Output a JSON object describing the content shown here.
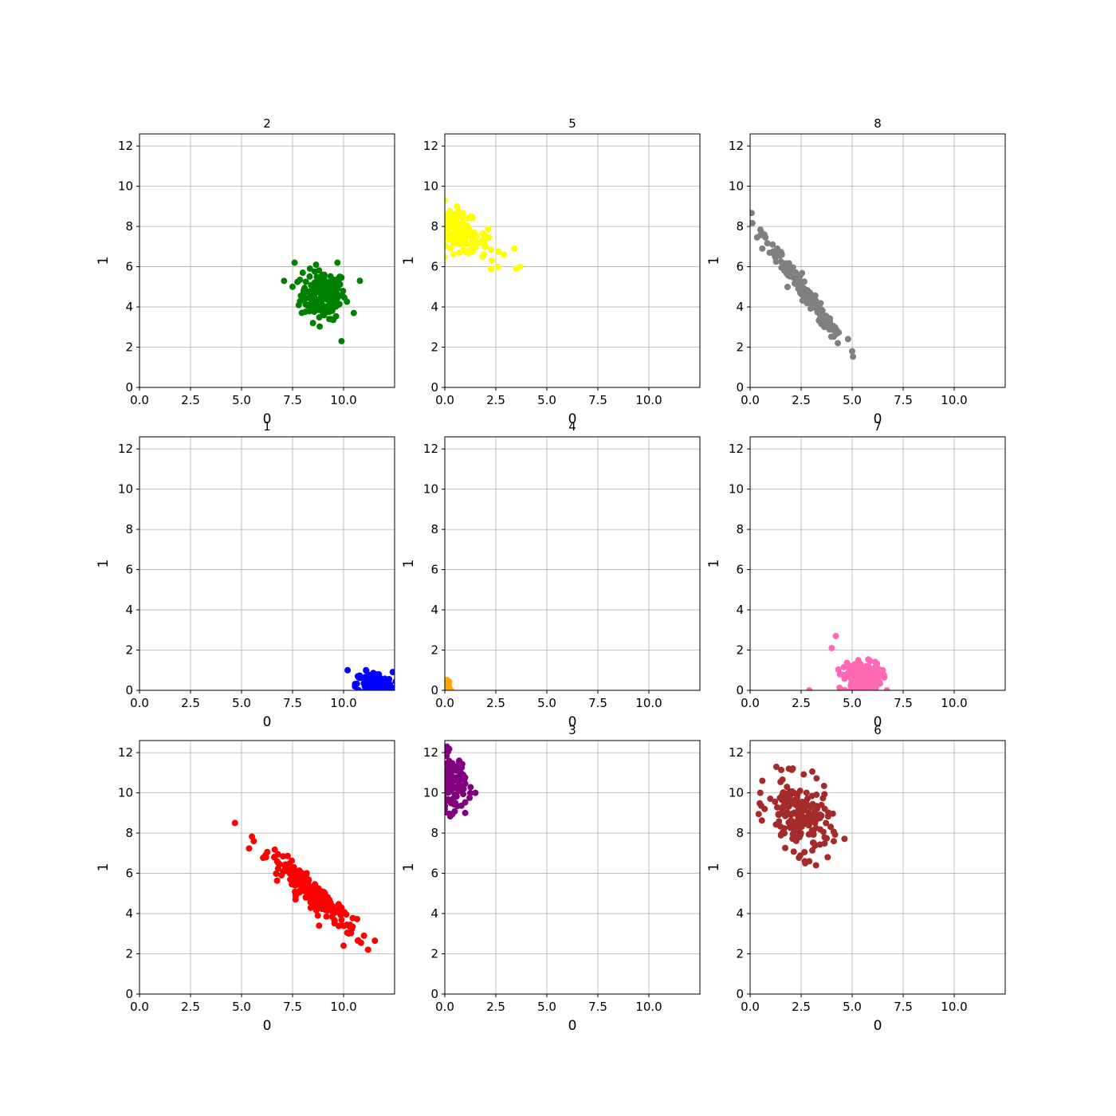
{
  "chart_data": [
    {
      "type": "scatter",
      "title": "2",
      "xlabel": "0",
      "ylabel": "1",
      "xlim": [
        0,
        12.5
      ],
      "ylim": [
        0,
        12.6
      ],
      "xticks": [
        "0.0",
        "2.5",
        "5.0",
        "7.5",
        "10.0"
      ],
      "yticks": [
        "0",
        "2",
        "4",
        "6",
        "8",
        "10",
        "12"
      ],
      "grid": true,
      "color": "#008000",
      "cluster": {
        "points": [
          [
            9.0,
            4.6
          ],
          [
            7.6,
            6.2
          ],
          [
            10.8,
            5.3
          ],
          [
            9.9,
            2.3
          ],
          [
            7.5,
            5.0
          ],
          [
            9.7,
            6.2
          ],
          [
            8.5,
            3.2
          ],
          [
            10.5,
            3.7
          ],
          [
            8.0,
            5.7
          ],
          [
            9.3,
            3.4
          ]
        ],
        "spread": [
          [
            0.55,
            0
          ],
          [
            0,
            0.6
          ]
        ],
        "n": 180
      }
    },
    {
      "type": "scatter",
      "title": "5",
      "xlabel": "0",
      "ylabel": "1",
      "xlim": [
        0,
        12.5
      ],
      "ylim": [
        0,
        12.6
      ],
      "xticks": [
        "0.0",
        "2.5",
        "5.0",
        "7.5",
        "10.0"
      ],
      "yticks": [
        "0",
        "2",
        "4",
        "6",
        "8",
        "10",
        "12"
      ],
      "grid": true,
      "color": "#ffff00",
      "cluster": {
        "points": [
          [
            0.7,
            7.7
          ],
          [
            0.0,
            9.3
          ],
          [
            3.7,
            6.0
          ],
          [
            3.5,
            5.9
          ],
          [
            3.4,
            6.9
          ],
          [
            2.9,
            6.6
          ],
          [
            2.3,
            6.3
          ],
          [
            0.1,
            8.6
          ],
          [
            0.6,
            9.0
          ],
          [
            1.5,
            7.0
          ]
        ],
        "spread": [
          [
            0.7,
            -0.3
          ],
          [
            0,
            0.45
          ]
        ],
        "n": 150
      }
    },
    {
      "type": "scatter",
      "title": "8",
      "xlabel": "0",
      "ylabel": "1",
      "xlim": [
        0,
        12.5
      ],
      "ylim": [
        0,
        12.6
      ],
      "xticks": [
        "0.0",
        "2.5",
        "5.0",
        "7.5",
        "10.0"
      ],
      "yticks": [
        "0",
        "2",
        "4",
        "6",
        "8",
        "10",
        "12"
      ],
      "grid": true,
      "color": "#808080",
      "cluster": {
        "points": [
          [
            2.7,
            4.7
          ],
          [
            0.7,
            7.6
          ],
          [
            5.0,
            1.8
          ],
          [
            4.8,
            2.4
          ],
          [
            4.3,
            2.2
          ],
          [
            1.1,
            7.1
          ],
          [
            0.6,
            6.9
          ],
          [
            3.9,
            3.0
          ]
        ],
        "spread": [
          [
            0.95,
            -1.35
          ],
          [
            0.08,
            0.12
          ]
        ],
        "n": 200
      }
    },
    {
      "type": "scatter",
      "title": "1",
      "xlabel": "0",
      "ylabel": "1",
      "xlim": [
        0,
        12.5
      ],
      "ylim": [
        0,
        12.6
      ],
      "xticks": [
        "0.0",
        "2.5",
        "5.0",
        "7.5",
        "10.0"
      ],
      "yticks": [
        "0",
        "2",
        "4",
        "6",
        "8",
        "10",
        "12"
      ],
      "grid": true,
      "color": "#0000ff",
      "cluster": {
        "points": [
          [
            11.5,
            0.3
          ],
          [
            10.2,
            1.0
          ],
          [
            11.1,
            1.0
          ],
          [
            10.7,
            0.7
          ],
          [
            12.4,
            0.1
          ],
          [
            11.8,
            0.5
          ],
          [
            12.0,
            0.0
          ]
        ],
        "spread": [
          [
            0.45,
            0
          ],
          [
            0,
            0.3
          ]
        ],
        "n": 150
      }
    },
    {
      "type": "scatter",
      "title": "4",
      "xlabel": "0",
      "ylabel": "1",
      "xlim": [
        0,
        12.5
      ],
      "ylim": [
        0,
        12.6
      ],
      "xticks": [
        "0.0",
        "2.5",
        "5.0",
        "7.5",
        "10.0"
      ],
      "yticks": [
        "0",
        "2",
        "4",
        "6",
        "8",
        "10",
        "12"
      ],
      "grid": true,
      "color": "#ffa500",
      "cluster": {
        "points": [
          [
            0.05,
            0.3
          ],
          [
            0.0,
            0.5
          ],
          [
            0.15,
            0.2
          ],
          [
            0.3,
            0.0
          ],
          [
            0.1,
            0.05
          ]
        ],
        "spread": [
          [
            0.1,
            0
          ],
          [
            0,
            0.12
          ]
        ],
        "n": 20
      }
    },
    {
      "type": "scatter",
      "title": "7",
      "xlabel": "0",
      "ylabel": "1",
      "xlim": [
        0,
        12.5
      ],
      "ylim": [
        0,
        12.6
      ],
      "xticks": [
        "0.0",
        "2.5",
        "5.0",
        "7.5",
        "10.0"
      ],
      "yticks": [
        "0",
        "2",
        "4",
        "6",
        "8",
        "10",
        "12"
      ],
      "grid": true,
      "color": "#ff69b4",
      "cluster": {
        "points": [
          [
            5.5,
            0.6
          ],
          [
            4.2,
            2.7
          ],
          [
            4.0,
            2.1
          ],
          [
            2.9,
            0.0
          ],
          [
            4.4,
            0.8
          ],
          [
            6.7,
            0.0
          ],
          [
            5.3,
            1.5
          ]
        ],
        "spread": [
          [
            0.45,
            0
          ],
          [
            0,
            0.4
          ]
        ],
        "n": 160
      }
    },
    {
      "type": "scatter",
      "title": "",
      "xlabel": "0",
      "ylabel": "1",
      "xlim": [
        0,
        12.5
      ],
      "ylim": [
        0,
        12.6
      ],
      "xticks": [
        "0.0",
        "2.5",
        "5.0",
        "7.5",
        "10.0"
      ],
      "yticks": [
        "0",
        "2",
        "4",
        "6",
        "8",
        "10",
        "12"
      ],
      "grid": true,
      "color": "#ff0000",
      "cluster": {
        "points": [
          [
            8.6,
            4.9
          ],
          [
            5.6,
            7.6
          ],
          [
            11.2,
            2.2
          ],
          [
            10.0,
            2.4
          ],
          [
            6.2,
            6.8
          ],
          [
            6.6,
            6.8
          ],
          [
            11.0,
            2.9
          ],
          [
            8.8,
            3.4
          ]
        ],
        "spread": [
          [
            1.05,
            -0.95
          ],
          [
            0.15,
            0.2
          ]
        ],
        "n": 220
      }
    },
    {
      "type": "scatter",
      "title": "3",
      "xlabel": "0",
      "ylabel": "1",
      "xlim": [
        0,
        12.5
      ],
      "ylim": [
        0,
        12.6
      ],
      "xticks": [
        "0.0",
        "2.5",
        "5.0",
        "7.5",
        "10.0"
      ],
      "yticks": [
        "0",
        "2",
        "4",
        "6",
        "8",
        "10",
        "12"
      ],
      "grid": true,
      "color": "#800080",
      "cluster": {
        "points": [
          [
            0.3,
            10.5
          ],
          [
            0.1,
            12.3
          ],
          [
            1.5,
            10.0
          ],
          [
            1.0,
            9.0
          ],
          [
            0.0,
            9.2
          ],
          [
            0.9,
            10.9
          ],
          [
            0.0,
            12.0
          ]
        ],
        "spread": [
          [
            0.35,
            0
          ],
          [
            0,
            0.7
          ]
        ],
        "n": 130
      }
    },
    {
      "type": "scatter",
      "title": "6",
      "xlabel": "0",
      "ylabel": "1",
      "xlim": [
        0,
        12.5
      ],
      "ylim": [
        0,
        12.6
      ],
      "xticks": [
        "0.0",
        "2.5",
        "5.0",
        "7.5",
        "10.0"
      ],
      "yticks": [
        "0",
        "2",
        "4",
        "6",
        "8",
        "10",
        "12"
      ],
      "grid": true,
      "color": "#a52a2a",
      "cluster": {
        "points": [
          [
            2.4,
            8.8
          ],
          [
            1.9,
            11.2
          ],
          [
            0.6,
            10.6
          ],
          [
            2.7,
            6.5
          ],
          [
            3.8,
            6.8
          ],
          [
            4.1,
            7.6
          ],
          [
            0.5,
            10.0
          ],
          [
            2.9,
            6.6
          ]
        ],
        "spread": [
          [
            0.75,
            -0.25
          ],
          [
            0,
            0.85
          ]
        ],
        "n": 200
      }
    }
  ]
}
